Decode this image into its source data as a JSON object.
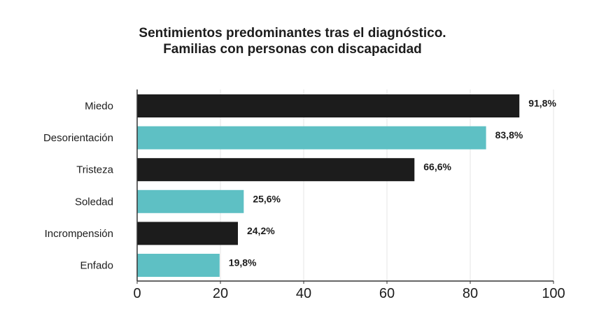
{
  "chart_data": {
    "type": "bar",
    "orientation": "horizontal",
    "title_lines": [
      "Sentimientos predominantes tras el diagnóstico.",
      "Familias con personas con discapacidad"
    ],
    "categories": [
      "Miedo",
      "Desorientación",
      "Tristeza",
      "Soledad",
      "Incrompensión",
      "Enfado"
    ],
    "values": [
      91.8,
      83.8,
      66.6,
      25.6,
      24.2,
      19.8
    ],
    "value_labels": [
      "91,8%",
      "83,8%",
      "66,6%",
      "25,6%",
      "24,2%",
      "19,8%"
    ],
    "bar_colors": [
      "#1c1c1c",
      "#5ec0c4",
      "#1c1c1c",
      "#5ec0c4",
      "#1c1c1c",
      "#5ec0c4"
    ],
    "xlim": [
      0,
      100
    ],
    "xticks": [
      0,
      20,
      40,
      60,
      80,
      100
    ],
    "xtick_labels": [
      "0",
      "20",
      "40",
      "60",
      "80",
      "100"
    ],
    "xlabel": "",
    "ylabel": "",
    "grid": "vertical",
    "legend": "none"
  }
}
